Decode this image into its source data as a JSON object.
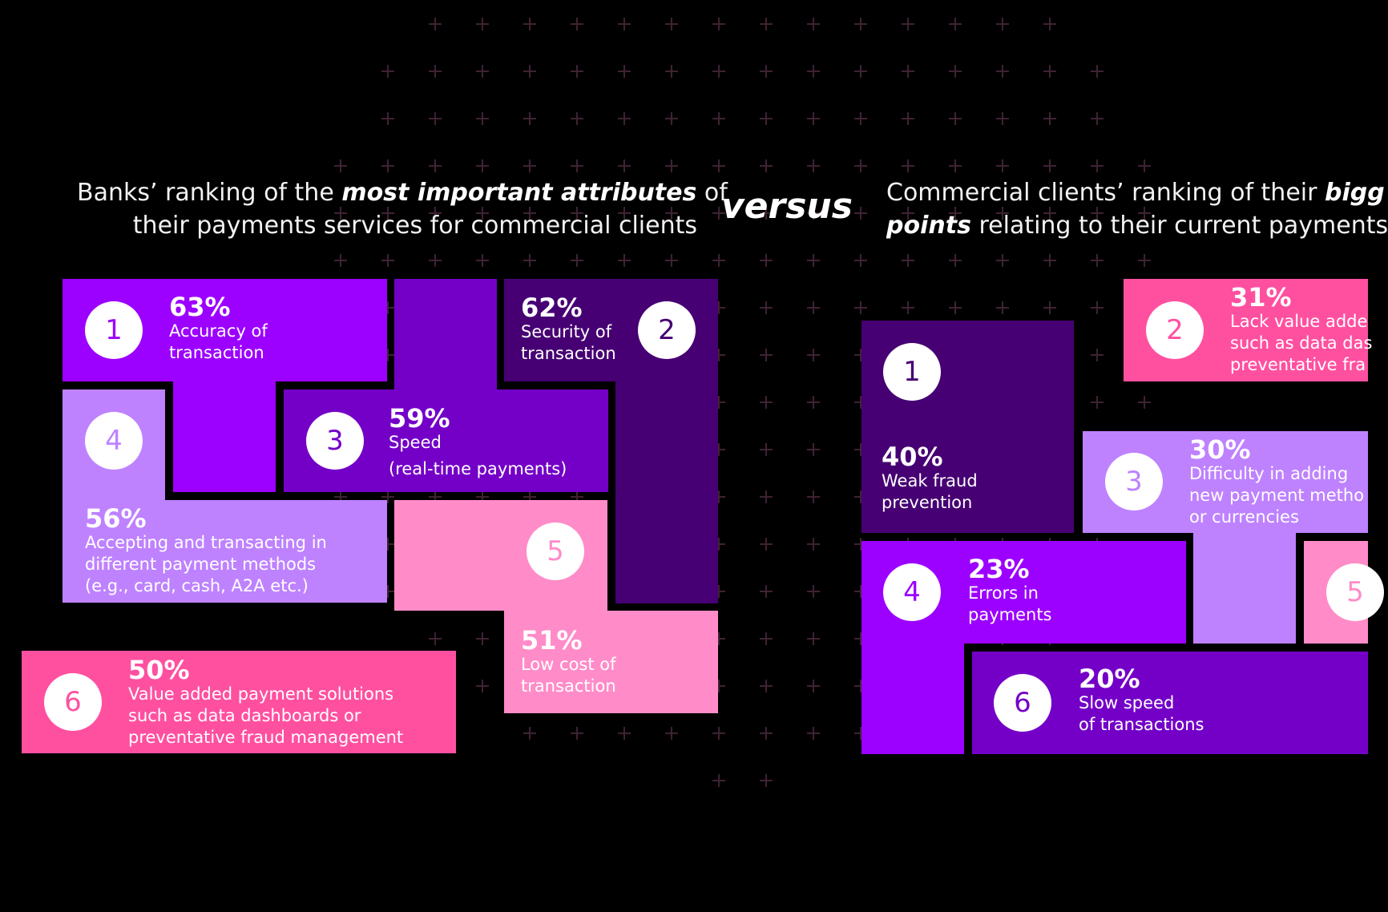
{
  "heading_left": {
    "pre": "Banks’ ranking of the ",
    "bold": "most important attributes",
    "post": " of",
    "line2": "their payments services for commercial clients"
  },
  "versus": "versus",
  "heading_right": {
    "pre": "Commercial clients’ ranking of their ",
    "bold1": "bigg",
    "bold2": "points",
    "post": " relating to their current payments"
  },
  "colors": {
    "bright_purple": "#9c00ff",
    "mid_purple": "#7b00cc",
    "dark_purple": "#460073",
    "lavender": "#be82ff",
    "pink": "#ff50a0",
    "light_pink": "#ff8cc8"
  },
  "banks": [
    {
      "rank": "1",
      "pct": "63%",
      "label": "Accuracy of\ntransaction"
    },
    {
      "rank": "2",
      "pct": "62%",
      "label": "Security of\ntransaction"
    },
    {
      "rank": "3",
      "pct": "59%",
      "label": "Speed",
      "sub": "(real-time payments)"
    },
    {
      "rank": "4",
      "pct": "56%",
      "label": "Accepting and transacting in\ndifferent payment methods\n(e.g., card, cash, A2A etc.)"
    },
    {
      "rank": "5",
      "pct": "51%",
      "label": "Low cost of\ntransaction"
    },
    {
      "rank": "6",
      "pct": "50%",
      "label": "Value added payment solutions\nsuch as data dashboards or\npreventative fraud management"
    }
  ],
  "clients": [
    {
      "rank": "1",
      "pct": "40%",
      "label": "Weak fraud\nprevention"
    },
    {
      "rank": "2",
      "pct": "31%",
      "label": "Lack value adde\nsuch as data das\npreventative fra"
    },
    {
      "rank": "3",
      "pct": "30%",
      "label": "Difficulty in adding\nnew payment metho\nor currencies"
    },
    {
      "rank": "4",
      "pct": "23%",
      "label": "Errors in\npayments"
    },
    {
      "rank": "5"
    },
    {
      "rank": "6",
      "pct": "20%",
      "label": "Slow speed\nof transactions"
    }
  ]
}
